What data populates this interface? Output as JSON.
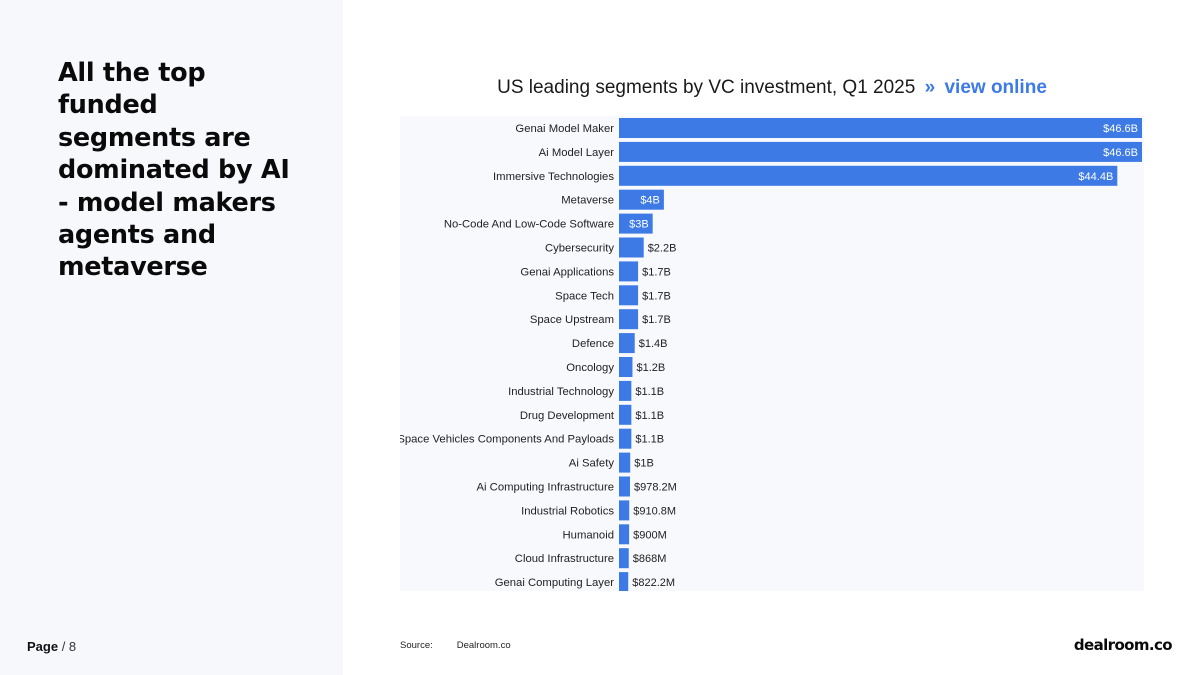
{
  "headline": "All the top funded segments are dominated by AI - model makers agents and metaverse",
  "page": {
    "label": "Page",
    "separator": " / ",
    "number": "8"
  },
  "chart_link": {
    "separator": "»",
    "label": "view online"
  },
  "source": {
    "label": "Source:",
    "value": "Dealroom.co"
  },
  "logo": "dealroom.co",
  "colors": {
    "bar": "#3d7ae6",
    "accent": "#3d7ae6",
    "panel": "#f7f8fc"
  },
  "chart_data": {
    "type": "bar",
    "orientation": "horizontal",
    "title": "US leading segments by VC investment, Q1 2025",
    "xlabel": "",
    "ylabel": "",
    "unit": "USD",
    "xlim": [
      0,
      46.6
    ],
    "categories": [
      "Genai Model Maker",
      "Ai Model Layer",
      "Immersive Technologies",
      "Metaverse",
      "No-Code And Low-Code Software",
      "Cybersecurity",
      "Genai Applications",
      "Space Tech",
      "Space Upstream",
      "Defence",
      "Oncology",
      "Industrial Technology",
      "Drug Development",
      "Space Vehicles Components And Payloads",
      "Ai Safety",
      "Ai Computing Infrastructure",
      "Industrial Robotics",
      "Humanoid",
      "Cloud Infrastructure",
      "Genai Computing Layer"
    ],
    "values_billions": [
      46.6,
      46.6,
      44.4,
      4,
      3,
      2.2,
      1.7,
      1.7,
      1.7,
      1.4,
      1.2,
      1.1,
      1.1,
      1.1,
      1,
      0.9782,
      0.9108,
      0.9,
      0.868,
      0.8222
    ],
    "value_labels": [
      "$46.6B",
      "$46.6B",
      "$44.4B",
      "$4B",
      "$3B",
      "$2.2B",
      "$1.7B",
      "$1.7B",
      "$1.7B",
      "$1.4B",
      "$1.2B",
      "$1.1B",
      "$1.1B",
      "$1.1B",
      "$1B",
      "$978.2M",
      "$910.8M",
      "$900M",
      "$868M",
      "$822.2M"
    ],
    "grid": false,
    "legend": "none"
  }
}
